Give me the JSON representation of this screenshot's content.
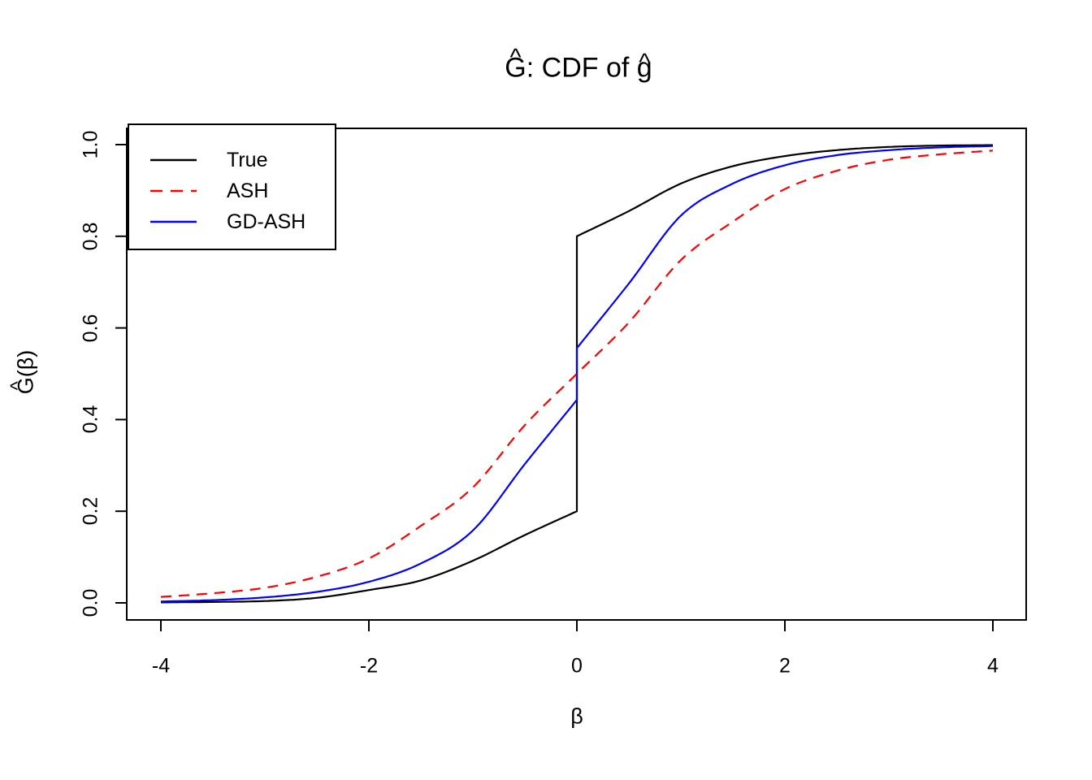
{
  "title": {
    "text": "Ĝ: CDF of ĝ"
  },
  "axes": {
    "x": {
      "label": "β",
      "tick_labels": [
        "-4",
        "-2",
        "0",
        "2",
        "4"
      ],
      "tick_values": [
        -4,
        -2,
        0,
        2,
        4
      ]
    },
    "y": {
      "label": "Ĝ(β)",
      "tick_labels": [
        "0.0",
        "0.2",
        "0.4",
        "0.6",
        "0.8",
        "1.0"
      ],
      "tick_values": [
        0,
        0.2,
        0.4,
        0.6,
        0.8,
        1.0
      ]
    }
  },
  "legend": {
    "items": [
      {
        "label": "True",
        "color": "#000000",
        "line_style": "solid"
      },
      {
        "label": "ASH",
        "color": "#FF0000",
        "line_style": "dashed"
      },
      {
        "label": "GD-ASH",
        "color": "#0000FF",
        "line_style": "solid"
      }
    ]
  },
  "chart_data": {
    "type": "line",
    "title": "Ĝ: CDF of ĝ",
    "xlabel": "β",
    "ylabel": "Ĝ(β)",
    "xlim": [
      -4,
      4
    ],
    "ylim": [
      0,
      1
    ],
    "grid": false,
    "legend_position": "top-left",
    "series": [
      {
        "name": "True",
        "color": "#000000",
        "style": "solid",
        "jump": {
          "x": 0,
          "from": 0.2,
          "to": 0.8
        },
        "segments": [
          [
            [
              -4,
              0.001
            ],
            [
              -3.5,
              0.002
            ],
            [
              -3,
              0.004
            ],
            [
              -2.5,
              0.011
            ],
            [
              -2,
              0.028
            ],
            [
              -1.5,
              0.049
            ],
            [
              -1,
              0.092
            ],
            [
              -0.5,
              0.148
            ],
            [
              0,
              0.2
            ]
          ],
          [
            [
              0,
              0.8
            ],
            [
              0.5,
              0.855
            ],
            [
              1,
              0.915
            ],
            [
              1.5,
              0.953
            ],
            [
              2,
              0.975
            ],
            [
              2.5,
              0.988
            ],
            [
              3,
              0.995
            ],
            [
              3.5,
              0.998
            ],
            [
              4,
              0.999
            ]
          ]
        ]
      },
      {
        "name": "ASH",
        "color": "#FF0000",
        "style": "dashed",
        "segments": [
          [
            [
              -4,
              0.013
            ],
            [
              -3.5,
              0.021
            ],
            [
              -3,
              0.033
            ],
            [
              -2.5,
              0.057
            ],
            [
              -2,
              0.097
            ],
            [
              -1.5,
              0.168
            ],
            [
              -1,
              0.252
            ],
            [
              -0.5,
              0.388
            ],
            [
              0,
              0.5
            ],
            [
              0.5,
              0.612
            ],
            [
              1,
              0.748
            ],
            [
              1.5,
              0.832
            ],
            [
              2,
              0.903
            ],
            [
              2.5,
              0.943
            ],
            [
              3,
              0.967
            ],
            [
              3.5,
              0.979
            ],
            [
              4,
              0.987
            ]
          ]
        ]
      },
      {
        "name": "GD-ASH",
        "color": "#0000FF",
        "style": "solid",
        "jump": {
          "x": 0,
          "from": 0.443,
          "to": 0.556
        },
        "segments": [
          [
            [
              -4,
              0.003
            ],
            [
              -3.5,
              0.006
            ],
            [
              -3,
              0.012
            ],
            [
              -2.5,
              0.024
            ],
            [
              -2,
              0.046
            ],
            [
              -1.5,
              0.086
            ],
            [
              -1,
              0.158
            ],
            [
              -0.5,
              0.303
            ],
            [
              0,
              0.443
            ]
          ],
          [
            [
              0,
              0.556
            ],
            [
              0.5,
              0.697
            ],
            [
              1,
              0.845
            ],
            [
              1.5,
              0.915
            ],
            [
              2,
              0.955
            ],
            [
              2.5,
              0.977
            ],
            [
              3,
              0.988
            ],
            [
              3.5,
              0.994
            ],
            [
              4,
              0.997
            ]
          ]
        ]
      }
    ]
  }
}
